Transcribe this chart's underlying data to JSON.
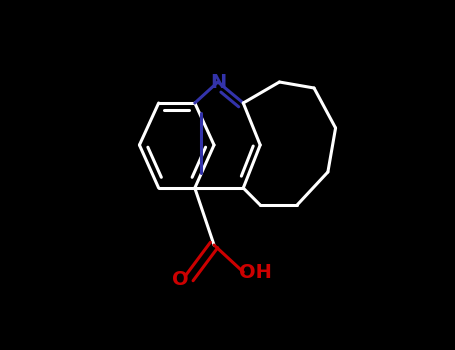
{
  "bg_color": "#000000",
  "bond_color": "#ffffff",
  "N_color": "#3333aa",
  "O_color": "#cc0000",
  "lw": 2.2,
  "figsize": [
    4.55,
    3.5
  ],
  "dpi": 100,
  "atoms": {
    "N": {
      "color": "#3333aa"
    },
    "O": {
      "color": "#cc0000"
    }
  }
}
